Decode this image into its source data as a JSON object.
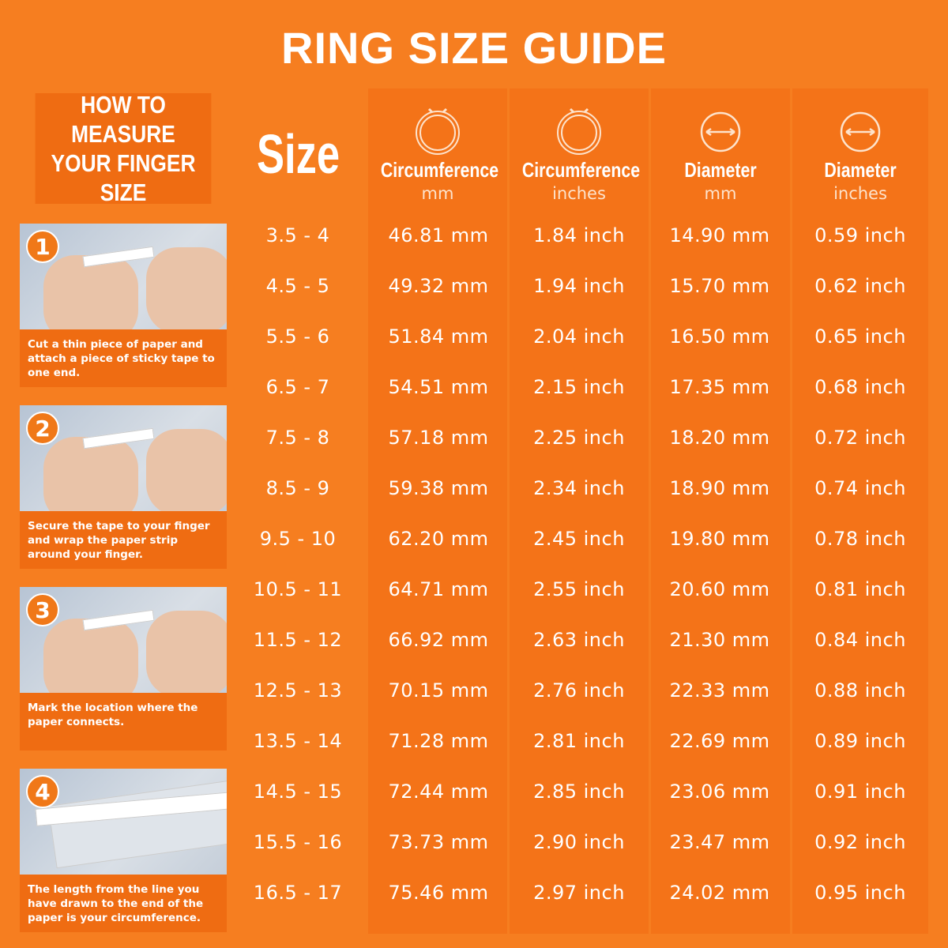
{
  "title": "RING SIZE GUIDE",
  "howto": {
    "line1": "HOW TO MEASURE",
    "line2": "YOUR FINGER SIZE"
  },
  "steps": [
    {
      "number": "1",
      "text": "Cut a thin piece of paper and attach a piece of sticky tape to one end."
    },
    {
      "number": "2",
      "text": "Secure the tape to your finger and wrap the paper strip around your finger."
    },
    {
      "number": "3",
      "text": "Mark the location where the paper connects."
    },
    {
      "number": "4",
      "text": "The length from the line you have drawn to the end of the paper is your circumference."
    }
  ],
  "headers": {
    "size": "Size",
    "columns": [
      {
        "label": "Circumference",
        "unit": "mm",
        "icon": "ring-circumference-icon"
      },
      {
        "label": "Circumference",
        "unit": "inches",
        "icon": "ring-circumference-icon"
      },
      {
        "label": "Diameter",
        "unit": "mm",
        "icon": "ring-diameter-icon"
      },
      {
        "label": "Diameter",
        "unit": "inches",
        "icon": "ring-diameter-icon"
      }
    ]
  },
  "rows": [
    [
      "3.5 - 4",
      "46.81 mm",
      "1.84 inch",
      "14.90 mm",
      "0.59 inch"
    ],
    [
      "4.5 - 5",
      "49.32 mm",
      "1.94 inch",
      "15.70 mm",
      "0.62 inch"
    ],
    [
      "5.5 - 6",
      "51.84 mm",
      "2.04 inch",
      "16.50 mm",
      "0.65 inch"
    ],
    [
      "6.5 - 7",
      "54.51 mm",
      "2.15 inch",
      "17.35 mm",
      "0.68 inch"
    ],
    [
      "7.5 - 8",
      "57.18 mm",
      "2.25 inch",
      "18.20 mm",
      "0.72 inch"
    ],
    [
      "8.5 - 9",
      "59.38 mm",
      "2.34 inch",
      "18.90 mm",
      "0.74 inch"
    ],
    [
      "9.5 - 10",
      "62.20 mm",
      "2.45 inch",
      "19.80 mm",
      "0.78 inch"
    ],
    [
      "10.5 - 11",
      "64.71 mm",
      "2.55 inch",
      "20.60 mm",
      "0.81 inch"
    ],
    [
      "11.5 - 12",
      "66.92 mm",
      "2.63 inch",
      "21.30 mm",
      "0.84 inch"
    ],
    [
      "12.5 - 13",
      "70.15 mm",
      "2.76 inch",
      "22.33 mm",
      "0.88 inch"
    ],
    [
      "13.5 - 14",
      "71.28 mm",
      "2.81 inch",
      "22.69 mm",
      "0.89 inch"
    ],
    [
      "14.5 - 15",
      "72.44 mm",
      "2.85 inch",
      "23.06 mm",
      "0.91 inch"
    ],
    [
      "15.5 - 16",
      "73.73 mm",
      "2.90 inch",
      "23.47 mm",
      "0.92 inch"
    ],
    [
      "16.5 - 17",
      "75.46 mm",
      "2.97 inch",
      "24.02 mm",
      "0.95 inch"
    ]
  ],
  "colors": {
    "background": "#f67e20",
    "panel": "#ef6c12",
    "text": "#ffffff"
  }
}
